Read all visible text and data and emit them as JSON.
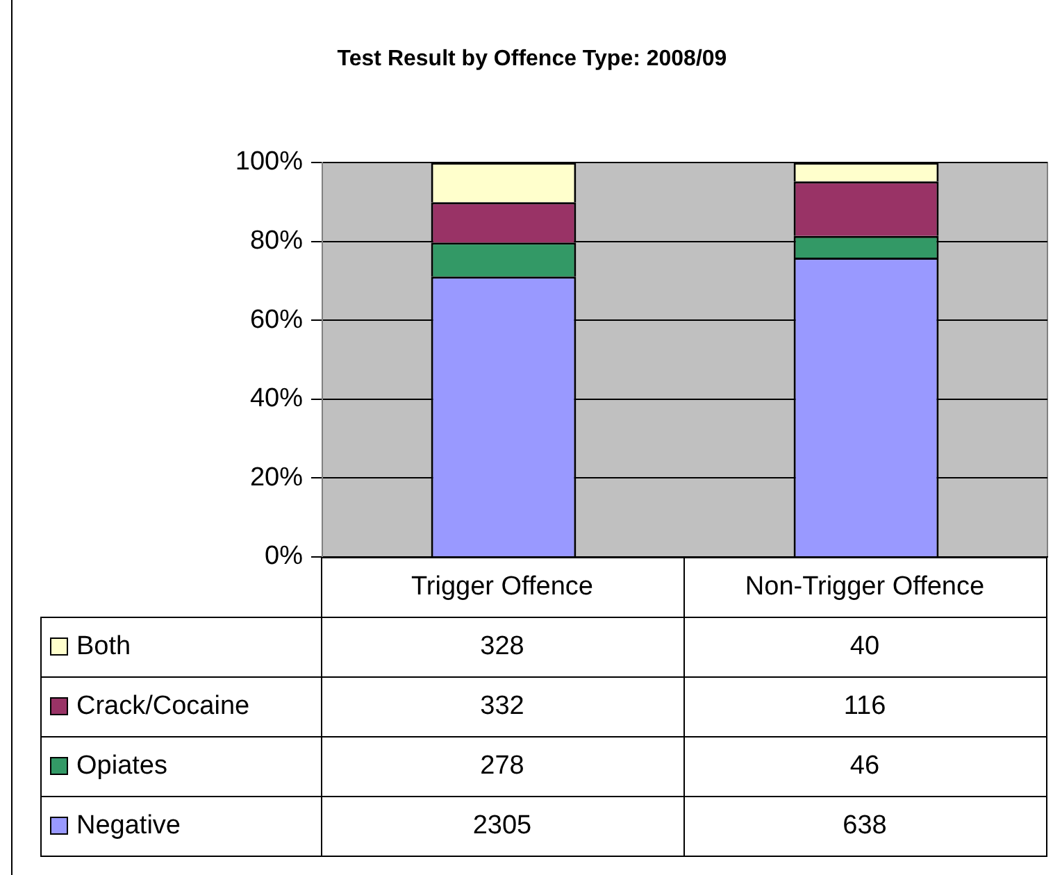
{
  "chart_data": {
    "type": "bar",
    "title": "Test Result by Offence Type:  2008/09",
    "categories": [
      "Trigger Offence",
      "Non-Trigger Offence"
    ],
    "stacked": true,
    "series": [
      {
        "name": "Negative",
        "color": "#9999ff",
        "values": [
          71.1,
          75.9
        ]
      },
      {
        "name": "Opiates",
        "color": "#339966",
        "values": [
          8.6,
          5.5
        ]
      },
      {
        "name": "Crack/Cocaine",
        "color": "#993366",
        "values": [
          10.2,
          13.8
        ]
      },
      {
        "name": "Both",
        "color": "#ffffcc",
        "values": [
          10.1,
          4.8
        ]
      }
    ],
    "annotations": [
      "328",
      "40",
      "332",
      "116",
      "278",
      "46",
      "2305",
      "638"
    ],
    "ylim": [
      0,
      100
    ],
    "yticks": [
      {
        "value": 0,
        "label": "0%"
      },
      {
        "value": 20,
        "label": "20%"
      },
      {
        "value": 40,
        "label": "40%"
      },
      {
        "value": 60,
        "label": "60%"
      },
      {
        "value": 80,
        "label": "80%"
      },
      {
        "value": 100,
        "label": "100%"
      }
    ],
    "grid": "y",
    "legend": "bottom"
  }
}
